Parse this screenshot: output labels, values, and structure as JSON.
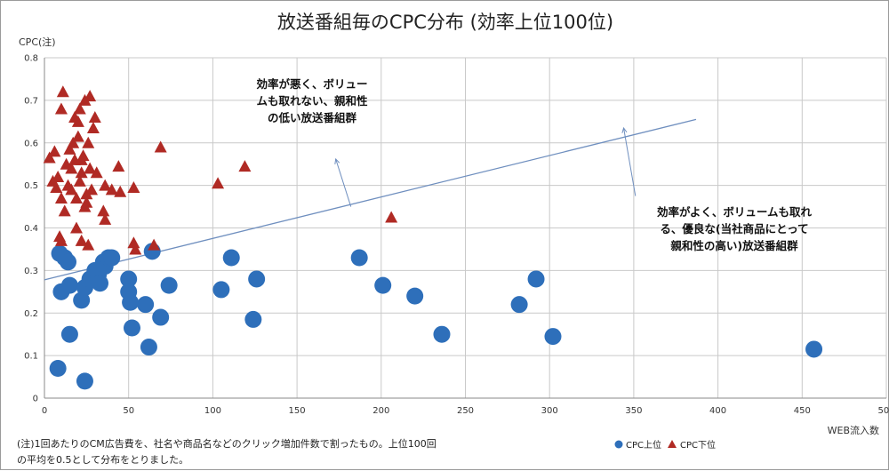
{
  "chart_data": {
    "type": "scatter",
    "title": "放送番組毎のCPC分布 (効率上位100位)",
    "ylabel": "CPC(注)",
    "xlabel": "WEB流入数",
    "xlim": [
      0,
      500
    ],
    "ylim": [
      0,
      0.8
    ],
    "x_ticks": [
      "0",
      "50",
      "100",
      "150",
      "200",
      "250",
      "300",
      "350",
      "400",
      "450",
      "500"
    ],
    "y_ticks": [
      "0",
      "0.1",
      "0.2",
      "0.3",
      "0.4",
      "0.5",
      "0.6",
      "0.7",
      "0.8"
    ],
    "grid": true,
    "legend_position": "bottom-right",
    "series": [
      {
        "name": "CPC上位",
        "marker": "circle",
        "color": "#2e6fba",
        "points": [
          [
            8,
            0.07
          ],
          [
            24,
            0.04
          ],
          [
            15,
            0.15
          ],
          [
            9,
            0.34
          ],
          [
            12,
            0.33
          ],
          [
            10,
            0.25
          ],
          [
            14,
            0.32
          ],
          [
            15,
            0.265
          ],
          [
            22,
            0.23
          ],
          [
            24,
            0.26
          ],
          [
            27,
            0.28
          ],
          [
            30,
            0.3
          ],
          [
            32,
            0.29
          ],
          [
            33,
            0.27
          ],
          [
            35,
            0.32
          ],
          [
            36,
            0.31
          ],
          [
            38,
            0.33
          ],
          [
            40,
            0.33
          ],
          [
            50,
            0.28
          ],
          [
            50,
            0.25
          ],
          [
            51,
            0.225
          ],
          [
            52,
            0.165
          ],
          [
            60,
            0.22
          ],
          [
            62,
            0.12
          ],
          [
            64,
            0.345
          ],
          [
            69,
            0.19
          ],
          [
            74,
            0.265
          ],
          [
            105,
            0.255
          ],
          [
            111,
            0.33
          ],
          [
            124,
            0.185
          ],
          [
            126,
            0.28
          ],
          [
            187,
            0.33
          ],
          [
            201,
            0.265
          ],
          [
            220,
            0.24
          ],
          [
            236,
            0.15
          ],
          [
            282,
            0.22
          ],
          [
            292,
            0.28
          ],
          [
            302,
            0.145
          ],
          [
            457,
            0.115
          ]
        ]
      },
      {
        "name": "CPC下位",
        "marker": "triangle",
        "color": "#b02a24",
        "points": [
          [
            3,
            0.565
          ],
          [
            6,
            0.58
          ],
          [
            5,
            0.51
          ],
          [
            7,
            0.495
          ],
          [
            8,
            0.52
          ],
          [
            9,
            0.38
          ],
          [
            10,
            0.37
          ],
          [
            10,
            0.47
          ],
          [
            10,
            0.68
          ],
          [
            11,
            0.72
          ],
          [
            12,
            0.44
          ],
          [
            13,
            0.55
          ],
          [
            14,
            0.5
          ],
          [
            15,
            0.585
          ],
          [
            16,
            0.49
          ],
          [
            16,
            0.54
          ],
          [
            17,
            0.6
          ],
          [
            18,
            0.56
          ],
          [
            18,
            0.66
          ],
          [
            19,
            0.47
          ],
          [
            19,
            0.4
          ],
          [
            20,
            0.615
          ],
          [
            20,
            0.65
          ],
          [
            21,
            0.68
          ],
          [
            21,
            0.51
          ],
          [
            22,
            0.56
          ],
          [
            22,
            0.53
          ],
          [
            22,
            0.37
          ],
          [
            23,
            0.57
          ],
          [
            24,
            0.45
          ],
          [
            24,
            0.7
          ],
          [
            25,
            0.46
          ],
          [
            25,
            0.48
          ],
          [
            26,
            0.36
          ],
          [
            26,
            0.6
          ],
          [
            27,
            0.54
          ],
          [
            27,
            0.71
          ],
          [
            28,
            0.49
          ],
          [
            29,
            0.635
          ],
          [
            30,
            0.66
          ],
          [
            31,
            0.53
          ],
          [
            35,
            0.44
          ],
          [
            36,
            0.5
          ],
          [
            36,
            0.42
          ],
          [
            40,
            0.49
          ],
          [
            44,
            0.545
          ],
          [
            45,
            0.485
          ],
          [
            53,
            0.495
          ],
          [
            53,
            0.365
          ],
          [
            54,
            0.35
          ],
          [
            65,
            0.36
          ],
          [
            69,
            0.59
          ],
          [
            103,
            0.505
          ],
          [
            119,
            0.545
          ],
          [
            206,
            0.425
          ]
        ]
      }
    ],
    "trendline": {
      "from": [
        0,
        0.278
      ],
      "to": [
        387,
        0.655
      ],
      "color": "#6f8fbf"
    },
    "annotations": [
      {
        "lines": [
          "効率が悪く、ボリュー",
          "ムも取れない、親和性",
          "の低い放送番組群"
        ],
        "arrow_from": [
          173,
          0.562
        ],
        "arrow_to": [
          182,
          0.45
        ]
      },
      {
        "lines": [
          "効率がよく、ボリュームも取れ",
          "る、優良な(当社商品にとって",
          "親和性の高い)放送番組群"
        ],
        "arrow_from": [
          344,
          0.635
        ],
        "arrow_to": [
          351,
          0.475
        ]
      }
    ],
    "footnote": [
      "(注)1回あたりのCM広告費を、社名や商品名などのクリック増加件数で割ったもの。上位100回",
      "の平均を0.5として分布をとりました。"
    ]
  }
}
